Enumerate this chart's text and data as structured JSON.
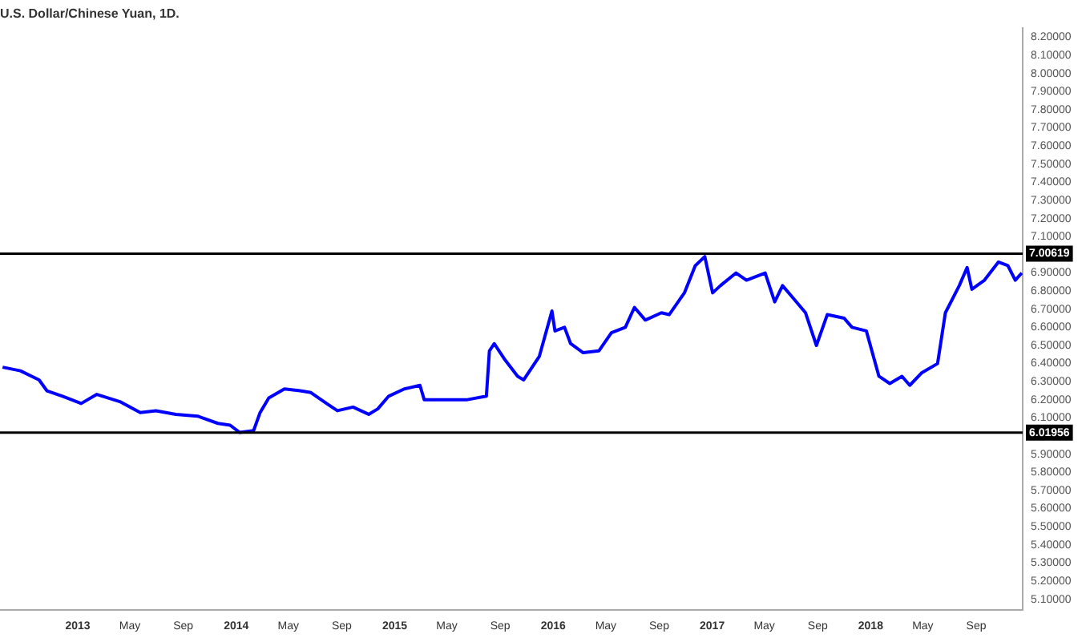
{
  "chart_data": {
    "type": "line",
    "title": "U.S. Dollar/Chinese Yuan, 1D.",
    "x": [
      "2012-07-12",
      "2012-08-22",
      "2012-10-04",
      "2012-10-22",
      "2012-11-27",
      "2013-01-09",
      "2013-02-14",
      "2013-04-08",
      "2013-05-25",
      "2013-06-30",
      "2013-08-15",
      "2013-10-04",
      "2013-11-20",
      "2013-12-18",
      "2014-01-09",
      "2014-02-10",
      "2014-02-25",
      "2014-03-17",
      "2014-04-22",
      "2014-05-28",
      "2014-06-22",
      "2014-07-28",
      "2014-08-22",
      "2014-09-27",
      "2014-11-02",
      "2014-11-23",
      "2014-12-18",
      "2015-01-23",
      "2015-02-28",
      "2015-03-10",
      "2015-04-29",
      "2015-06-15",
      "2015-07-31",
      "2015-08-07",
      "2015-08-18",
      "2015-09-12",
      "2015-10-11",
      "2015-10-25",
      "2015-11-30",
      "2015-12-29",
      "2016-01-05",
      "2016-01-27",
      "2016-02-10",
      "2016-03-10",
      "2016-04-15",
      "2016-05-14",
      "2016-06-15",
      "2016-07-06",
      "2016-07-31",
      "2016-09-06",
      "2016-09-24",
      "2016-10-29",
      "2016-11-23",
      "2016-12-15",
      "2017-01-02",
      "2017-01-20",
      "2017-02-25",
      "2017-03-21",
      "2017-05-03",
      "2017-05-25",
      "2017-06-12",
      "2017-07-07",
      "2017-08-04",
      "2017-08-29",
      "2017-09-23",
      "2017-11-01",
      "2017-11-19",
      "2017-12-22",
      "2018-01-20",
      "2018-02-14",
      "2018-03-14",
      "2018-04-01",
      "2018-04-29",
      "2018-06-04",
      "2018-06-22",
      "2018-07-24",
      "2018-08-11",
      "2018-08-22",
      "2018-09-20",
      "2018-10-22",
      "2018-11-13",
      "2018-11-30",
      "2018-12-15"
    ],
    "series": [
      {
        "color": "#0000ff",
        "values": [
          6.38,
          6.36,
          6.31,
          6.25,
          6.22,
          6.18,
          6.23,
          6.19,
          6.13,
          6.14,
          6.12,
          6.11,
          6.07,
          6.06,
          6.02,
          6.03,
          6.13,
          6.21,
          6.26,
          6.25,
          6.24,
          6.18,
          6.14,
          6.16,
          6.12,
          6.15,
          6.22,
          6.26,
          6.28,
          6.2,
          6.2,
          6.2,
          6.22,
          6.47,
          6.51,
          6.42,
          6.33,
          6.31,
          6.44,
          6.69,
          6.58,
          6.6,
          6.51,
          6.46,
          6.47,
          6.57,
          6.6,
          6.71,
          6.64,
          6.68,
          6.67,
          6.79,
          6.94,
          6.99,
          6.79,
          6.83,
          6.9,
          6.86,
          6.9,
          6.74,
          6.83,
          6.76,
          6.68,
          6.5,
          6.67,
          6.65,
          6.6,
          6.58,
          6.33,
          6.29,
          6.33,
          6.28,
          6.35,
          6.4,
          6.68,
          6.83,
          6.93,
          6.81,
          6.86,
          6.96,
          6.94,
          6.86,
          6.9
        ]
      }
    ],
    "xlim": [
      "2012-07-06",
      "2018-12-17"
    ],
    "xticks": [
      {
        "value": "2013-01-01",
        "label": "2013"
      },
      {
        "value": "2013-05-01",
        "label": "May"
      },
      {
        "value": "2013-09-01",
        "label": "Sep"
      },
      {
        "value": "2014-01-01",
        "label": "2014"
      },
      {
        "value": "2014-05-01",
        "label": "May"
      },
      {
        "value": "2014-09-01",
        "label": "Sep"
      },
      {
        "value": "2015-01-01",
        "label": "2015"
      },
      {
        "value": "2015-05-01",
        "label": "May"
      },
      {
        "value": "2015-09-01",
        "label": "Sep"
      },
      {
        "value": "2016-01-01",
        "label": "2016"
      },
      {
        "value": "2016-05-01",
        "label": "May"
      },
      {
        "value": "2016-09-01",
        "label": "Sep"
      },
      {
        "value": "2017-01-01",
        "label": "2017"
      },
      {
        "value": "2017-05-01",
        "label": "May"
      },
      {
        "value": "2017-09-01",
        "label": "Sep"
      },
      {
        "value": "2018-01-01",
        "label": "2018"
      },
      {
        "value": "2018-05-01",
        "label": "May"
      },
      {
        "value": "2018-09-01",
        "label": "Sep"
      }
    ],
    "ylim": [
      5.04,
      8.25
    ],
    "yticks": [
      {
        "value": 5.1,
        "label": "5.10000"
      },
      {
        "value": 5.2,
        "label": "5.20000"
      },
      {
        "value": 5.3,
        "label": "5.30000"
      },
      {
        "value": 5.4,
        "label": "5.40000"
      },
      {
        "value": 5.5,
        "label": "5.50000"
      },
      {
        "value": 5.6,
        "label": "5.60000"
      },
      {
        "value": 5.7,
        "label": "5.70000"
      },
      {
        "value": 5.8,
        "label": "5.80000"
      },
      {
        "value": 5.9,
        "label": "5.90000"
      },
      {
        "value": 6.1,
        "label": "6.10000"
      },
      {
        "value": 6.2,
        "label": "6.20000"
      },
      {
        "value": 6.3,
        "label": "6.30000"
      },
      {
        "value": 6.4,
        "label": "6.40000"
      },
      {
        "value": 6.5,
        "label": "6.50000"
      },
      {
        "value": 6.6,
        "label": "6.60000"
      },
      {
        "value": 6.7,
        "label": "6.70000"
      },
      {
        "value": 6.8,
        "label": "6.80000"
      },
      {
        "value": 6.9,
        "label": "6.90000"
      },
      {
        "value": 7.1,
        "label": "7.10000"
      },
      {
        "value": 7.2,
        "label": "7.20000"
      },
      {
        "value": 7.3,
        "label": "7.30000"
      },
      {
        "value": 7.4,
        "label": "7.40000"
      },
      {
        "value": 7.5,
        "label": "7.50000"
      },
      {
        "value": 7.6,
        "label": "7.60000"
      },
      {
        "value": 7.7,
        "label": "7.70000"
      },
      {
        "value": 7.8,
        "label": "7.80000"
      },
      {
        "value": 7.9,
        "label": "7.90000"
      },
      {
        "value": 8.0,
        "label": "8.00000"
      },
      {
        "value": 8.1,
        "label": "8.10000"
      },
      {
        "value": 8.2,
        "label": "8.20000"
      }
    ],
    "ref_lines": [
      {
        "axis": "y",
        "value": 7.00619,
        "label": "7.00619",
        "color": "#000000"
      },
      {
        "axis": "y",
        "value": 6.01956,
        "label": "6.01956",
        "color": "#000000"
      }
    ],
    "legend": false,
    "grid": false
  }
}
